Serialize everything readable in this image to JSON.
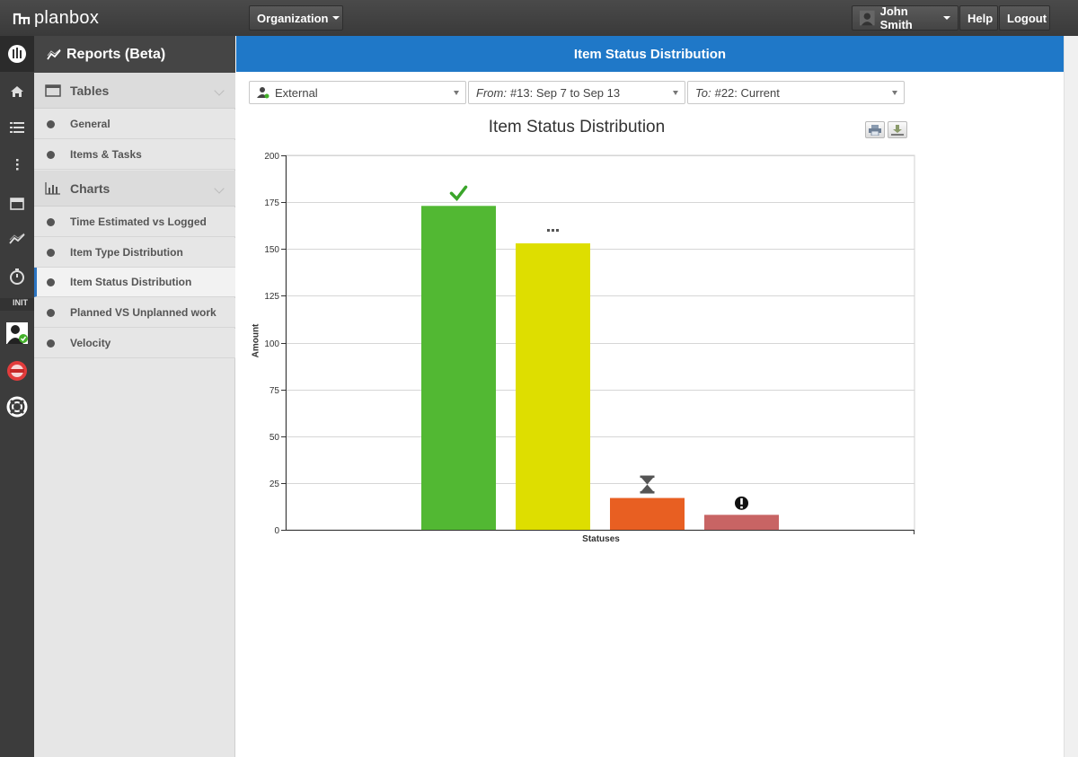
{
  "app": {
    "name": "planbox"
  },
  "topbar": {
    "organization_label": "Organization",
    "user_label": "John Smith",
    "help_label": "Help",
    "logout_label": "Logout"
  },
  "rail": {
    "section_label": "INIT"
  },
  "sidebar": {
    "title": "Reports (Beta)",
    "sections": [
      {
        "label": "Tables",
        "items": [
          "General",
          "Items & Tasks"
        ]
      },
      {
        "label": "Charts",
        "items": [
          "Time Estimated vs Logged",
          "Item Type Distribution",
          "Item Status Distribution",
          "Planned VS Unplanned work",
          "Velocity"
        ]
      }
    ],
    "active_item": "Item Status Distribution"
  },
  "header": {
    "title": "Item Status Distribution"
  },
  "filters": {
    "audience": {
      "value": "External"
    },
    "from": {
      "prefix": "From:",
      "value": "#13: Sep 7 to Sep 13"
    },
    "to": {
      "prefix": "To:",
      "value": "#22: Current"
    }
  },
  "colors": {
    "accent": "#1f78c8",
    "done": "#52b833",
    "in_progress": "#dede00",
    "waiting": "#e85f22",
    "blocked": "#c86464"
  },
  "chart_data": {
    "type": "bar",
    "title": "Item Status Distribution",
    "xlabel": "Statuses",
    "ylabel": "Amount",
    "ylim": [
      0,
      200
    ],
    "yticks": [
      0,
      25,
      50,
      75,
      100,
      125,
      150,
      175,
      200
    ],
    "grid": true,
    "categories": [
      "Completed",
      "In Progress",
      "Waiting",
      "Blocked"
    ],
    "category_icons": [
      "checkmark-icon",
      "ellipsis-icon",
      "hourglass-icon",
      "exclamation-icon"
    ],
    "values": [
      173,
      153,
      17,
      8
    ],
    "colors": [
      "#52b833",
      "#dede00",
      "#e85f22",
      "#c86464"
    ]
  }
}
